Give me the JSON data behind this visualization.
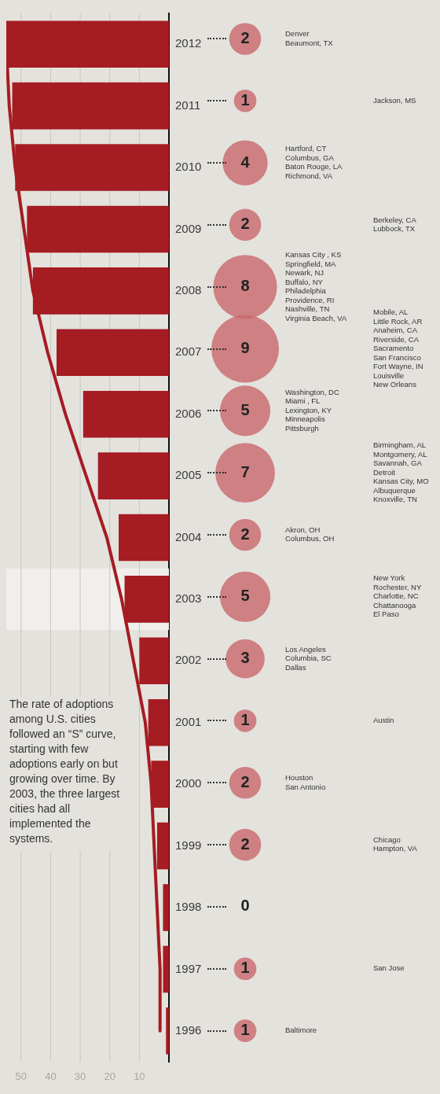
{
  "chart_data": [
    {
      "type": "bar",
      "orientation": "horizontal",
      "categories": [
        "2012",
        "2011",
        "2010",
        "2009",
        "2008",
        "2007",
        "2006",
        "2005",
        "2004",
        "2003",
        "2002",
        "2001",
        "2000",
        "1999",
        "1998",
        "1997",
        "1996"
      ],
      "series": [
        {
          "type": "bar",
          "color": "#a51c22",
          "values": [
            55,
            53,
            52,
            48,
            46,
            38,
            29,
            24,
            17,
            15,
            10,
            7,
            6,
            4,
            2,
            2,
            1
          ]
        },
        {
          "type": "line",
          "color": "#a51c22",
          "values": [
            55,
            54,
            52,
            49,
            46,
            41,
            35,
            28,
            21,
            16,
            12,
            8,
            6,
            5,
            4,
            3,
            3
          ]
        }
      ],
      "xlim": [
        55,
        0
      ],
      "xticks": [
        10,
        20,
        30,
        40,
        50
      ],
      "grid": "x",
      "marker": "none",
      "bands": [
        {
          "axis": "y",
          "from": "2003",
          "to": "2003",
          "color": "#f0efeb"
        }
      ],
      "annotations": [
        "The rate of adoptions among U.S. cities followed an “S” curve, starting with few adoptions early on but growing over time. By 2003, the three largest cities had all implemented the systems."
      ]
    },
    {
      "type": "other",
      "values": [
        2,
        1,
        4,
        2,
        8,
        9,
        5,
        7,
        2,
        5,
        3,
        1,
        2,
        2,
        0,
        1,
        1
      ],
      "color": "#c8686b",
      "data_labels": true,
      "annotations": [
        "Denver\nBeaumont, TX",
        "Jackson, MS",
        "Hartford, CT\nColumbus, GA\nBaton Rouge, LA\nRichmond, VA",
        "Berkeley, CA\nLubbock, TX",
        "Kansas City , KS\nSpringfield, MA\nNewark, NJ\nBuffalo, NY\nPhiladelphia\nProvidence, RI\nNashville, TN\nVirginia Beach, VA",
        "Mobile, AL\nLittle Rock, AR\nAnaheim, CA\nRiverside, CA\nSacramento\nSan Francisco\nFort Wayne, IN\nLouisville\nNew Orleans",
        "Washington, DC\nMiami , FL\nLexington, KY\nMinneapolis\nPittsburgh",
        "Birmingham, AL\nMontgomery, AL\nSavannah, GA\nDetroit\nKansas City, MO\nAlbuquerque\nKnoxville, TN",
        "Akron, OH\nColumbus, OH",
        "New York\nRochester, NY\nCharlotte, NC\nChattanooga\nEl Paso",
        "Los Angeles\nColumbia, SC\nDallas",
        "Austin",
        "Houston\nSan Antonio",
        "Chicago\nHampton, VA",
        "San Jose",
        "Baltimore"
      ]
    }
  ]
}
